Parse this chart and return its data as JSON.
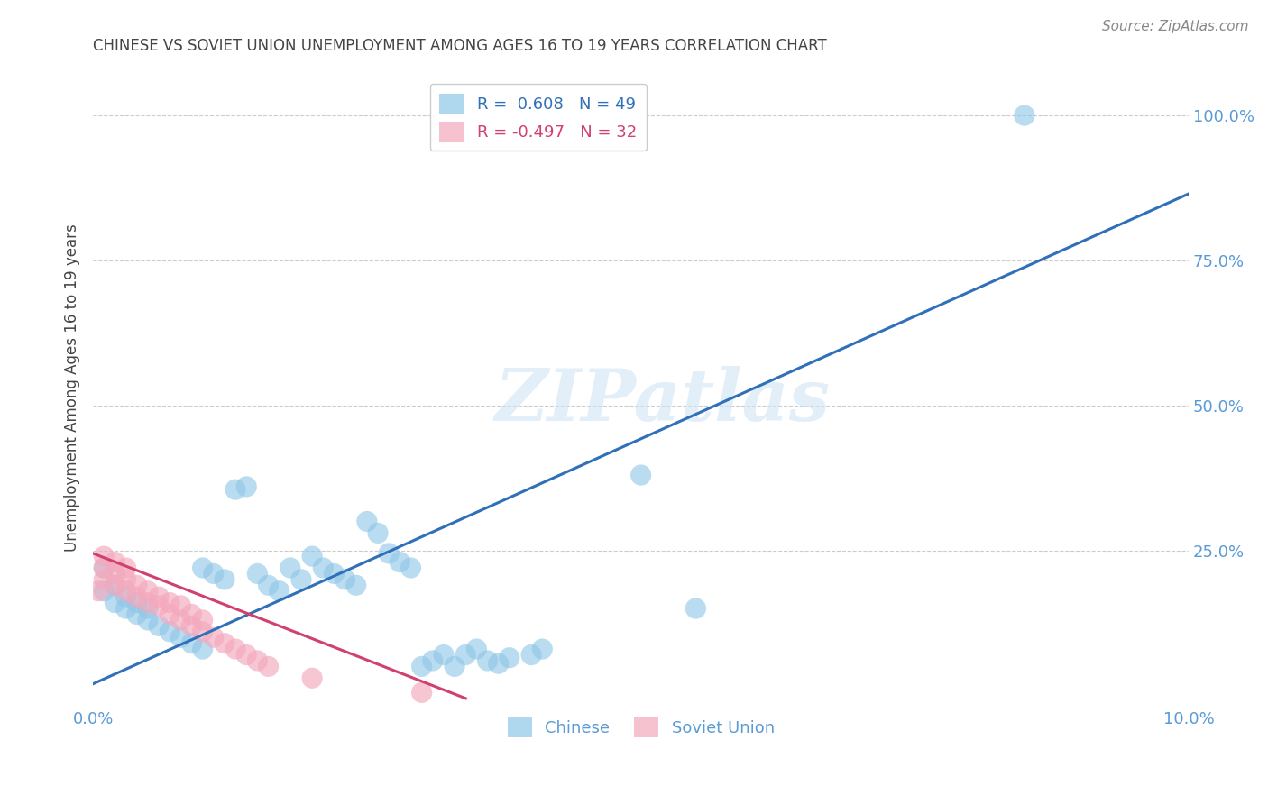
{
  "title": "CHINESE VS SOVIET UNION UNEMPLOYMENT AMONG AGES 16 TO 19 YEARS CORRELATION CHART",
  "source": "Source: ZipAtlas.com",
  "ylabel": "Unemployment Among Ages 16 to 19 years",
  "r_chinese": 0.608,
  "n_chinese": 49,
  "r_soviet": -0.497,
  "n_soviet": 32,
  "xmin": 0.0,
  "xmax": 0.1,
  "ymin": -0.02,
  "ymax": 1.08,
  "right_yticks": [
    0.25,
    0.5,
    0.75,
    1.0
  ],
  "right_yticklabels": [
    "25.0%",
    "50.0%",
    "75.0%",
    "100.0%"
  ],
  "watermark": "ZIPatlas",
  "background_color": "#ffffff",
  "chinese_color": "#8dc6e8",
  "soviet_color": "#f4a8bc",
  "chinese_line_color": "#3070b8",
  "soviet_line_color": "#d04070",
  "grid_color": "#cccccc",
  "title_color": "#444444",
  "axis_label_color": "#5b9bd5",
  "chinese_trend_x0": 0.0,
  "chinese_trend_y0": 0.02,
  "chinese_trend_x1": 0.1,
  "chinese_trend_y1": 0.865,
  "soviet_trend_x0": 0.0,
  "soviet_trend_y0": 0.245,
  "soviet_trend_x1": 0.034,
  "soviet_trend_y1": -0.005,
  "chinese_x": [
    0.001,
    0.001,
    0.002,
    0.002,
    0.003,
    0.003,
    0.004,
    0.004,
    0.005,
    0.005,
    0.006,
    0.007,
    0.008,
    0.009,
    0.01,
    0.01,
    0.011,
    0.012,
    0.013,
    0.014,
    0.015,
    0.016,
    0.017,
    0.018,
    0.019,
    0.02,
    0.021,
    0.022,
    0.023,
    0.024,
    0.025,
    0.026,
    0.027,
    0.028,
    0.029,
    0.03,
    0.031,
    0.032,
    0.033,
    0.034,
    0.035,
    0.036,
    0.037,
    0.038,
    0.04,
    0.041,
    0.05,
    0.055,
    0.085
  ],
  "chinese_y": [
    0.18,
    0.22,
    0.16,
    0.19,
    0.15,
    0.17,
    0.14,
    0.16,
    0.13,
    0.15,
    0.12,
    0.11,
    0.1,
    0.09,
    0.08,
    0.22,
    0.21,
    0.2,
    0.355,
    0.36,
    0.21,
    0.19,
    0.18,
    0.22,
    0.2,
    0.24,
    0.22,
    0.21,
    0.2,
    0.19,
    0.3,
    0.28,
    0.245,
    0.23,
    0.22,
    0.05,
    0.06,
    0.07,
    0.05,
    0.07,
    0.08,
    0.06,
    0.055,
    0.065,
    0.07,
    0.08,
    0.38,
    0.15,
    1.0
  ],
  "soviet_x": [
    0.0005,
    0.001,
    0.001,
    0.001,
    0.002,
    0.002,
    0.002,
    0.003,
    0.003,
    0.003,
    0.004,
    0.004,
    0.005,
    0.005,
    0.006,
    0.006,
    0.007,
    0.007,
    0.008,
    0.008,
    0.009,
    0.009,
    0.01,
    0.01,
    0.011,
    0.012,
    0.013,
    0.014,
    0.015,
    0.016,
    0.02,
    0.03
  ],
  "soviet_y": [
    0.18,
    0.22,
    0.2,
    0.24,
    0.19,
    0.21,
    0.23,
    0.18,
    0.2,
    0.22,
    0.17,
    0.19,
    0.16,
    0.18,
    0.155,
    0.17,
    0.14,
    0.16,
    0.13,
    0.155,
    0.12,
    0.14,
    0.11,
    0.13,
    0.1,
    0.09,
    0.08,
    0.07,
    0.06,
    0.05,
    0.03,
    0.005
  ]
}
